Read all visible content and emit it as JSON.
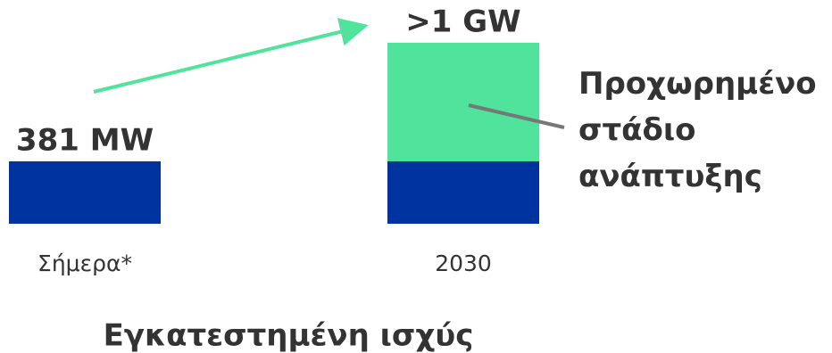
{
  "chart_data": {
    "type": "bar",
    "stacked": true,
    "title": "Εγκατεστημένη ισχύς",
    "categories": [
      "Σήμερα*",
      "2030"
    ],
    "series": [
      {
        "color": "#0033a0",
        "values": [
          381,
          381
        ]
      },
      {
        "name": "Προχωρημένο στάδιο ανάπτυξης",
        "color": "#50e39c",
        "values": [
          0,
          724
        ]
      }
    ],
    "value_labels": [
      "381 MW",
      ">1 GW"
    ]
  }
}
